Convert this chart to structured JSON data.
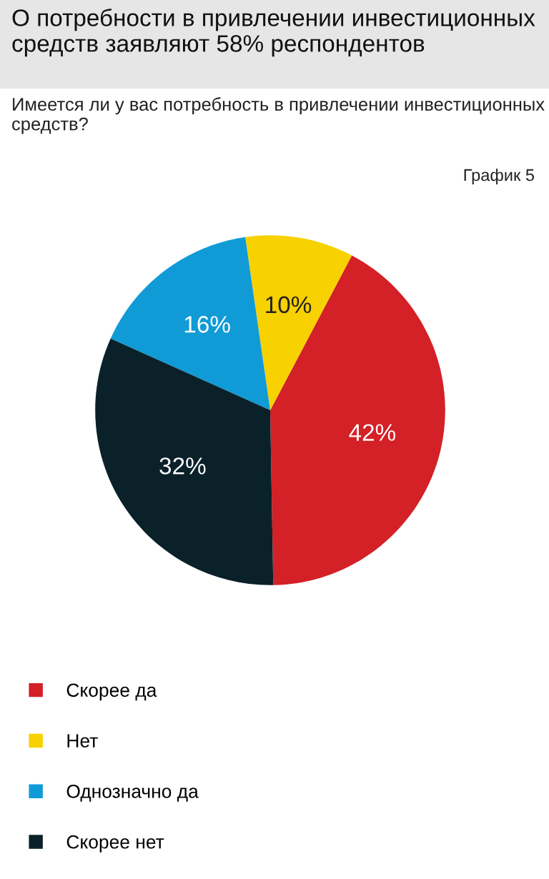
{
  "chart_data": {
    "type": "pie",
    "title": "О потребности в привлечении инвестиционных средств заявляют 58% респондентов",
    "subtitle": "Имеется ли у вас потребность в привлечении инвестиционных средств?",
    "annotations": [
      "График 5"
    ],
    "categories": [
      "Скорее да",
      "Нет",
      "Однозначно да",
      "Скорее нет"
    ],
    "values": [
      42,
      10,
      16,
      32
    ],
    "colors": [
      "#d42027",
      "#f7d100",
      "#109bd7",
      "#0b212a"
    ],
    "value_labels": [
      "42%",
      "10%",
      "16%",
      "32%"
    ],
    "legend": "bottom"
  }
}
